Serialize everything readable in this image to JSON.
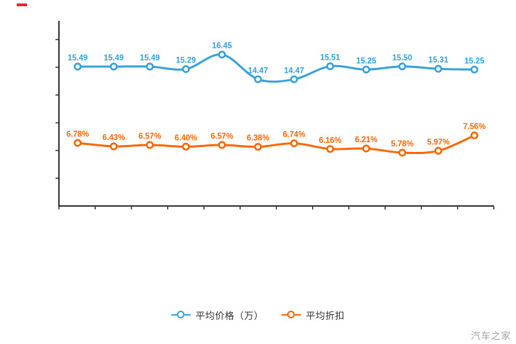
{
  "page": {
    "watermark": "汽车之家",
    "background_color": "#ffffff",
    "top_left_dash_color": "#f5222d",
    "axis_color": "#2f2f2f"
  },
  "chart_data": {
    "type": "line",
    "title": "",
    "xlabel": "",
    "ylabel": "",
    "point_count": 12,
    "grid": false,
    "x_tick_labels_visible": false,
    "y_tick_labels_visible": false,
    "legend_position": "bottom",
    "series": [
      {
        "name": "平均价格（万）",
        "color": "#36a0da",
        "marker": "donut-circle",
        "label_suffix": "",
        "values": [
          15.49,
          15.49,
          15.49,
          15.29,
          16.45,
          14.47,
          14.47,
          15.51,
          15.25,
          15.5,
          15.31,
          15.25
        ]
      },
      {
        "name": "平均折扣",
        "color": "#ff6600",
        "marker": "donut-circle",
        "label_suffix": "%",
        "values": [
          6.78,
          6.43,
          6.57,
          6.4,
          6.57,
          6.38,
          6.74,
          6.16,
          6.21,
          5.78,
          5.97,
          7.56
        ]
      }
    ]
  }
}
